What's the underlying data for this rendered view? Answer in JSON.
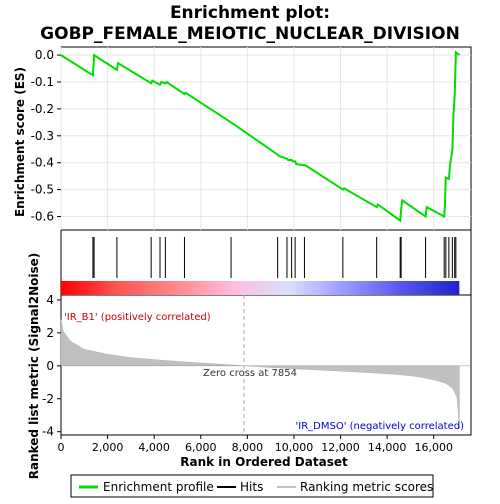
{
  "chart_data": {
    "type": "line",
    "title": "Enrichment plot: GOBP_FEMALE_MEIOTIC_NUCLEAR_DIVISION",
    "title_line1": "Enrichment plot:",
    "title_line2": "GOBP_FEMALE_MEIOTIC_NUCLEAR_DIVISION",
    "xlabel": "Rank in Ordered Dataset",
    "ylabel_top": "Enrichment score (ES)",
    "ylabel_bottom": "Ranked list metric (Signal2Noise)",
    "xlim": [
      0,
      17600
    ],
    "x_ticks": [
      0,
      2000,
      4000,
      6000,
      8000,
      10000,
      12000,
      14000,
      16000
    ],
    "x_tick_labels": [
      "0",
      "2,000",
      "4,000",
      "6,000",
      "8,000",
      "10,000",
      "12,000",
      "14,000",
      "16,000"
    ],
    "es_ylim": [
      -0.65,
      0.03
    ],
    "es_ticks": [
      0.0,
      -0.1,
      -0.2,
      -0.3,
      -0.4,
      -0.5,
      -0.6
    ],
    "es_tick_labels": [
      "0.0",
      "-0.1",
      "-0.2",
      "-0.3",
      "-0.4",
      "-0.5",
      "-0.6"
    ],
    "metric_ylim": [
      -4.2,
      4.3
    ],
    "metric_ticks": [
      4,
      2,
      0,
      -2,
      -4
    ],
    "metric_tick_labels": [
      "4",
      "2",
      "0",
      "-2",
      "-4"
    ],
    "zero_cross_x": 7854,
    "zero_cross_label": "Zero cross at 7854",
    "pos_label": "'IR_B1' (positively correlated)",
    "neg_label": "'IR_DMSO' (negatively correlated)",
    "series": [
      {
        "name": "Enrichment profile",
        "color": "#00dd00",
        "x": [
          0,
          1370,
          1420,
          2400,
          2450,
          3870,
          3920,
          4250,
          4300,
          4480,
          4530,
          5300,
          5350,
          7300,
          9300,
          9350,
          9700,
          9750,
          9900,
          9950,
          10050,
          10100,
          10450,
          10500,
          12100,
          12150,
          13550,
          13600,
          14560,
          14600,
          14650,
          15650,
          15700,
          16450,
          16480,
          16520,
          16650,
          16700,
          16800,
          16850,
          16900,
          16950,
          17100
        ],
        "y": [
          0.0,
          -0.075,
          0.0,
          -0.055,
          -0.03,
          -0.105,
          -0.095,
          -0.11,
          -0.1,
          -0.105,
          -0.1,
          -0.145,
          -0.14,
          -0.25,
          -0.37,
          -0.375,
          -0.385,
          -0.39,
          -0.39,
          -0.395,
          -0.395,
          -0.405,
          -0.41,
          -0.41,
          -0.5,
          -0.495,
          -0.565,
          -0.555,
          -0.615,
          -0.575,
          -0.54,
          -0.6,
          -0.565,
          -0.6,
          -0.56,
          -0.455,
          -0.46,
          -0.41,
          -0.35,
          -0.22,
          -0.15,
          0.01,
          0.0
        ]
      }
    ],
    "hits": [
      1370,
      1420,
      2400,
      3870,
      4250,
      4480,
      5300,
      7300,
      9300,
      9700,
      9900,
      10050,
      10450,
      12100,
      13550,
      14560,
      14600,
      15650,
      16450,
      16520,
      16650,
      16800,
      16900,
      16950
    ],
    "metric_profile": {
      "x": [
        0,
        100,
        400,
        1000,
        2000,
        3000,
        4000,
        5000,
        6000,
        7000,
        7854,
        9000,
        10000,
        11000,
        12000,
        13000,
        14000,
        14500,
        15000,
        15500,
        16000,
        16500,
        16800,
        17000,
        17050,
        17100
      ],
      "y": [
        2.8,
        2.1,
        1.5,
        1.0,
        0.7,
        0.5,
        0.38,
        0.27,
        0.17,
        0.08,
        0.0,
        -0.1,
        -0.18,
        -0.25,
        -0.32,
        -0.4,
        -0.48,
        -0.53,
        -0.6,
        -0.7,
        -0.85,
        -1.05,
        -1.35,
        -1.9,
        -2.8,
        -3.8
      ]
    },
    "colorbar_stops": [
      "#ff0000",
      "#ff5555",
      "#ff8888",
      "#ffbbdd",
      "#ddddff",
      "#9999ff",
      "#5555ee",
      "#2222cc"
    ],
    "legend": [
      {
        "label": "Enrichment profile",
        "color": "#00dd00"
      },
      {
        "label": "Hits",
        "color": "#000000"
      },
      {
        "label": "Ranking metric scores",
        "color": "#c0c0c0"
      }
    ]
  }
}
